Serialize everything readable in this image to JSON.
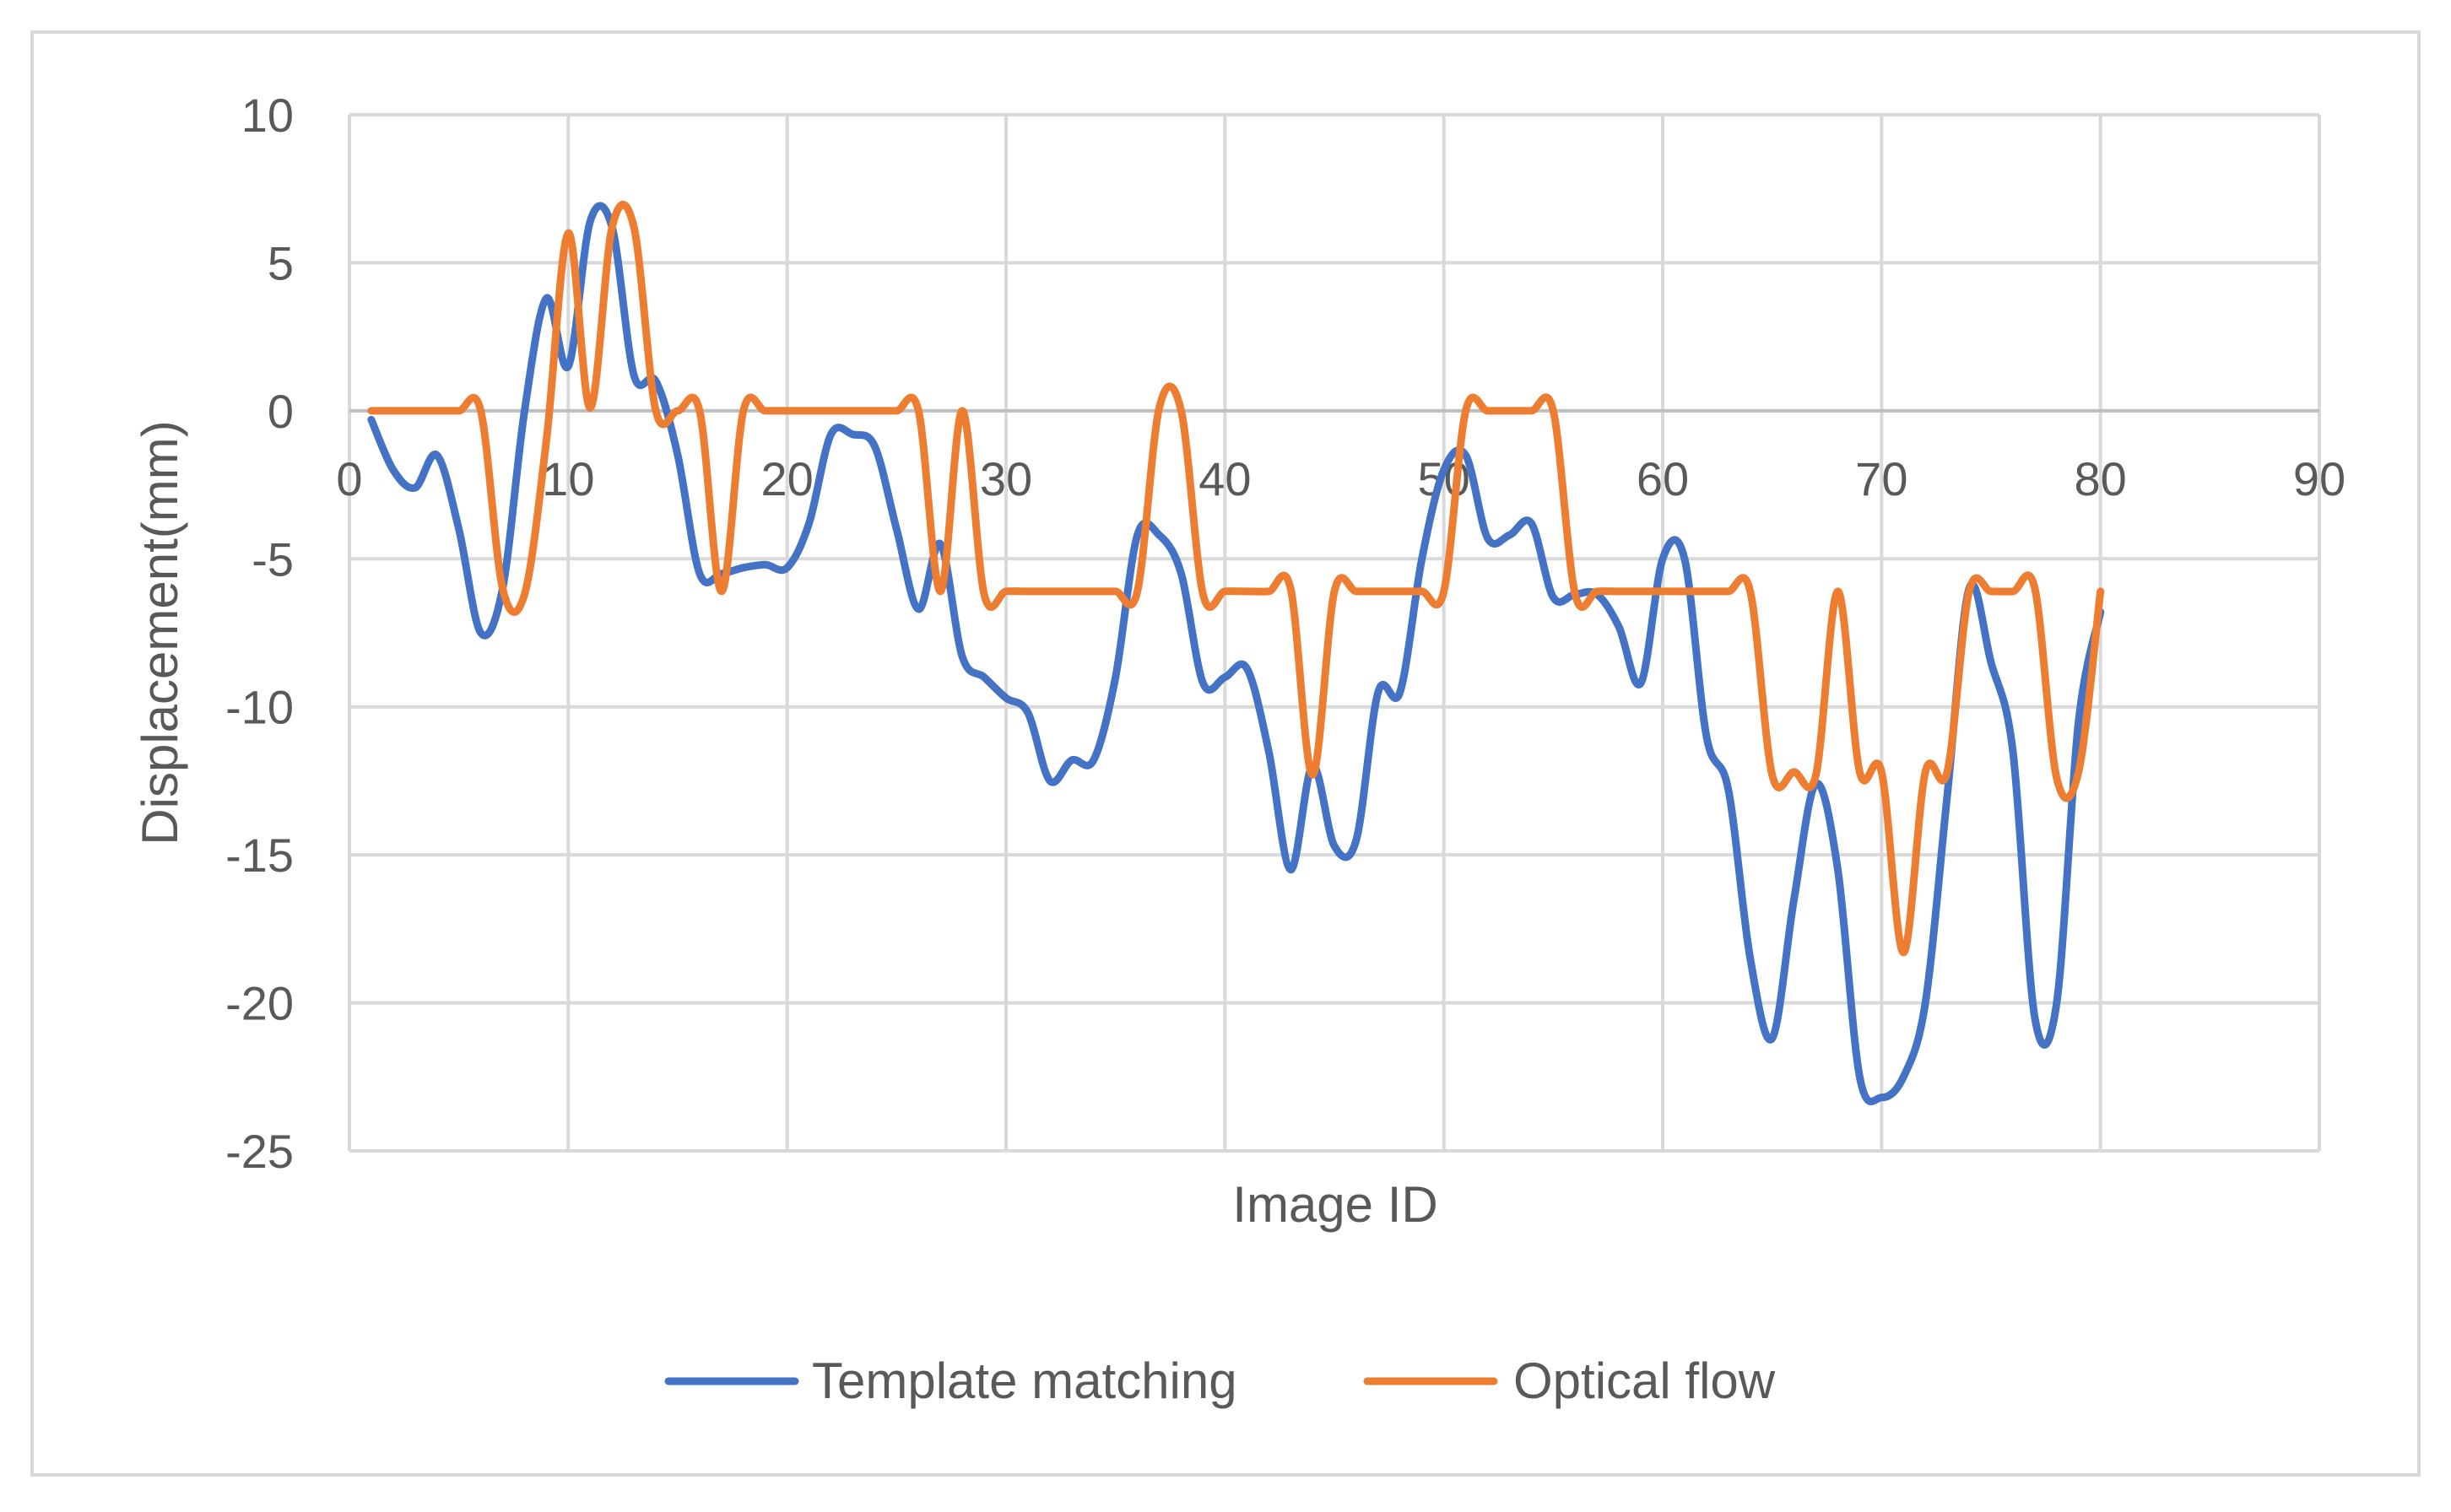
{
  "chart_data": {
    "type": "line",
    "title": "",
    "xlabel": "Image ID",
    "ylabel": "Displacement(mm)",
    "xlim": [
      0,
      90
    ],
    "ylim": [
      -25,
      10
    ],
    "x_ticks": [
      0,
      10,
      20,
      30,
      40,
      50,
      60,
      70,
      80,
      90
    ],
    "y_ticks": [
      10,
      5,
      0,
      -5,
      -10,
      -15,
      -20,
      -25
    ],
    "grid": true,
    "legend_position": "bottom",
    "series": [
      {
        "name": "Template matching",
        "color": "#4472C4",
        "points": [
          [
            1,
            -0.3
          ],
          [
            2,
            -2.0
          ],
          [
            3,
            -2.6
          ],
          [
            4,
            -1.5
          ],
          [
            5,
            -4.0
          ],
          [
            6,
            -7.5
          ],
          [
            7,
            -6.0
          ],
          [
            8,
            0.0
          ],
          [
            9,
            3.8
          ],
          [
            10,
            1.5
          ],
          [
            11,
            6.4
          ],
          [
            12,
            6.2
          ],
          [
            13,
            1.2
          ],
          [
            14,
            1.0
          ],
          [
            15,
            -1.5
          ],
          [
            16,
            -5.5
          ],
          [
            17,
            -5.5
          ],
          [
            18,
            -5.3
          ],
          [
            19,
            -5.2
          ],
          [
            20,
            -5.3
          ],
          [
            21,
            -3.8
          ],
          [
            22,
            -0.8
          ],
          [
            23,
            -0.8
          ],
          [
            24,
            -1.2
          ],
          [
            25,
            -4.0
          ],
          [
            26,
            -6.7
          ],
          [
            27,
            -4.5
          ],
          [
            28,
            -8.3
          ],
          [
            29,
            -9.0
          ],
          [
            30,
            -9.7
          ],
          [
            31,
            -10.2
          ],
          [
            32,
            -12.5
          ],
          [
            33,
            -11.8
          ],
          [
            34,
            -11.8
          ],
          [
            35,
            -9.0
          ],
          [
            36,
            -4.2
          ],
          [
            37,
            -4.2
          ],
          [
            38,
            -5.5
          ],
          [
            39,
            -9.2
          ],
          [
            40,
            -9.0
          ],
          [
            41,
            -8.7
          ],
          [
            42,
            -11.5
          ],
          [
            43,
            -15.5
          ],
          [
            44,
            -12.0
          ],
          [
            45,
            -14.7
          ],
          [
            46,
            -14.5
          ],
          [
            47,
            -9.5
          ],
          [
            48,
            -9.5
          ],
          [
            49,
            -5.0
          ],
          [
            50,
            -2.0
          ],
          [
            51,
            -1.5
          ],
          [
            52,
            -4.3
          ],
          [
            53,
            -4.2
          ],
          [
            54,
            -3.8
          ],
          [
            55,
            -6.3
          ],
          [
            56,
            -6.2
          ],
          [
            57,
            -6.2
          ],
          [
            58,
            -7.3
          ],
          [
            59,
            -9.2
          ],
          [
            60,
            -5.0
          ],
          [
            61,
            -5.0
          ],
          [
            62,
            -11.0
          ],
          [
            63,
            -12.8
          ],
          [
            64,
            -18.5
          ],
          [
            65,
            -21.2
          ],
          [
            66,
            -16.5
          ],
          [
            67,
            -12.6
          ],
          [
            68,
            -15.5
          ],
          [
            69,
            -22.5
          ],
          [
            70,
            -23.2
          ],
          [
            71,
            -22.5
          ],
          [
            72,
            -20.0
          ],
          [
            73,
            -13.0
          ],
          [
            74,
            -6.0
          ],
          [
            75,
            -8.5
          ],
          [
            76,
            -11.5
          ],
          [
            77,
            -20.5
          ],
          [
            78,
            -20.0
          ],
          [
            79,
            -10.5
          ],
          [
            80,
            -6.8
          ]
        ]
      },
      {
        "name": "Optical flow",
        "color": "#ED7D31",
        "points": [
          [
            1,
            0
          ],
          [
            2,
            0
          ],
          [
            3,
            0
          ],
          [
            4,
            0
          ],
          [
            5,
            0
          ],
          [
            6,
            0
          ],
          [
            7,
            -6.0
          ],
          [
            8,
            -6.2
          ],
          [
            9,
            -1.0
          ],
          [
            10,
            6.0
          ],
          [
            11,
            0.1
          ],
          [
            12,
            6.2
          ],
          [
            13,
            6.2
          ],
          [
            14,
            0.0
          ],
          [
            15,
            0.0
          ],
          [
            16,
            0.0
          ],
          [
            17,
            -6.1
          ],
          [
            18,
            0.0
          ],
          [
            19,
            0.0
          ],
          [
            20,
            0.0
          ],
          [
            21,
            0.0
          ],
          [
            22,
            0.0
          ],
          [
            23,
            0.0
          ],
          [
            24,
            0.0
          ],
          [
            25,
            0.0
          ],
          [
            26,
            0.0
          ],
          [
            27,
            -6.1
          ],
          [
            28,
            0.0
          ],
          [
            29,
            -6.2
          ],
          [
            30,
            -6.1
          ],
          [
            31,
            -6.1
          ],
          [
            32,
            -6.1
          ],
          [
            33,
            -6.1
          ],
          [
            34,
            -6.1
          ],
          [
            35,
            -6.1
          ],
          [
            36,
            -6.1
          ],
          [
            37,
            0.1
          ],
          [
            38,
            0.0
          ],
          [
            39,
            -6.2
          ],
          [
            40,
            -6.1
          ],
          [
            41,
            -6.1
          ],
          [
            42,
            -6.1
          ],
          [
            43,
            -6.0
          ],
          [
            44,
            -12.3
          ],
          [
            45,
            -6.1
          ],
          [
            46,
            -6.1
          ],
          [
            47,
            -6.1
          ],
          [
            48,
            -6.1
          ],
          [
            49,
            -6.1
          ],
          [
            50,
            -6.1
          ],
          [
            51,
            0.0
          ],
          [
            52,
            0.0
          ],
          [
            53,
            0.0
          ],
          [
            54,
            0.0
          ],
          [
            55,
            0.0
          ],
          [
            56,
            -6.2
          ],
          [
            57,
            -6.1
          ],
          [
            58,
            -6.1
          ],
          [
            59,
            -6.1
          ],
          [
            60,
            -6.1
          ],
          [
            61,
            -6.1
          ],
          [
            62,
            -6.1
          ],
          [
            63,
            -6.1
          ],
          [
            64,
            -6.1
          ],
          [
            65,
            -12.3
          ],
          [
            66,
            -12.2
          ],
          [
            67,
            -12.3
          ],
          [
            68,
            -6.1
          ],
          [
            69,
            -12.2
          ],
          [
            70,
            -12.2
          ],
          [
            71,
            -18.3
          ],
          [
            72,
            -12.2
          ],
          [
            73,
            -12.2
          ],
          [
            74,
            -6.1
          ],
          [
            75,
            -6.1
          ],
          [
            76,
            -6.1
          ],
          [
            77,
            -6.0
          ],
          [
            78,
            -12.4
          ],
          [
            79,
            -12.2
          ],
          [
            80,
            -6.1
          ]
        ]
      }
    ]
  }
}
